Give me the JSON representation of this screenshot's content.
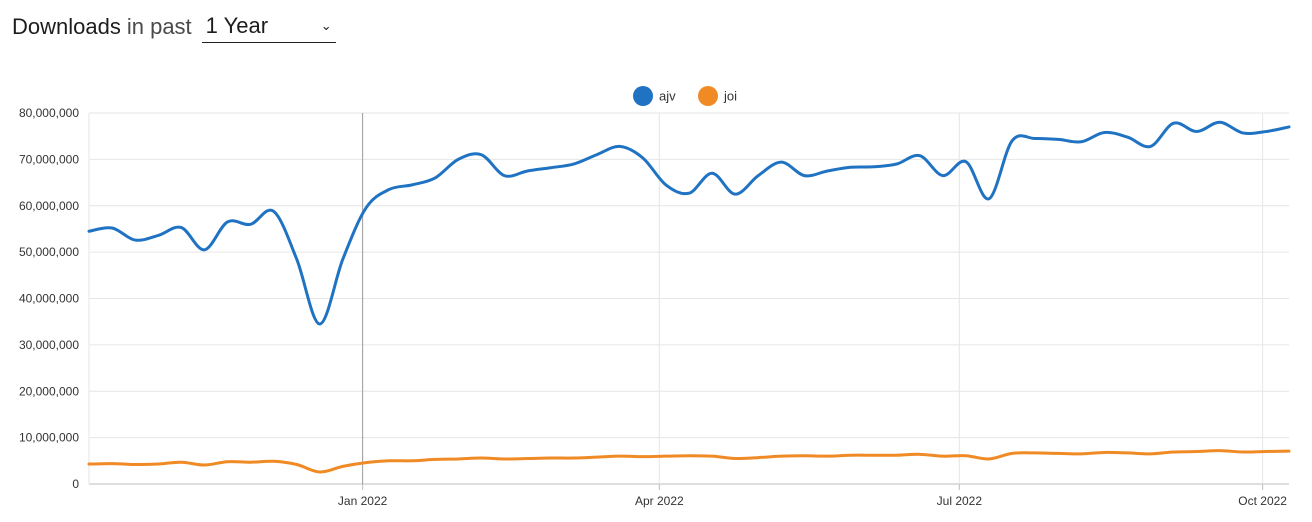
{
  "header": {
    "title_strong": "Downloads",
    "title_light": "in past",
    "period_selected": "1 Year",
    "chevron_icon": "chevron-down-icon"
  },
  "chart_data": {
    "type": "line",
    "title": "",
    "xlabel": "",
    "ylabel": "",
    "ylim": [
      0,
      80000000
    ],
    "y_ticks": [
      0,
      10000000,
      20000000,
      30000000,
      40000000,
      50000000,
      60000000,
      70000000,
      80000000
    ],
    "y_tick_labels": [
      "0",
      "10,000,000",
      "20,000,000",
      "30,000,000",
      "40,000,000",
      "50,000,000",
      "60,000,000",
      "70,000,000",
      "80,000,000"
    ],
    "x_range": [
      "2021-10-10",
      "2022-10-09"
    ],
    "x_ticks": [
      {
        "date": "2022-01-01",
        "label": "Jan 2022"
      },
      {
        "date": "2022-04-01",
        "label": "Apr 2022"
      },
      {
        "date": "2022-07-01",
        "label": "Jul 2022"
      },
      {
        "date": "2022-10-01",
        "label": "Oct 2022"
      }
    ],
    "hover_date": "2022-01-01",
    "grid": true,
    "legend_position": "top-center",
    "series": [
      {
        "name": "ajv",
        "color": "#1f73c2",
        "points": [
          [
            "2021-10-10",
            54500000
          ],
          [
            "2021-10-17",
            55200000
          ],
          [
            "2021-10-24",
            52600000
          ],
          [
            "2021-10-31",
            53600000
          ],
          [
            "2021-11-07",
            55300000
          ],
          [
            "2021-11-14",
            50500000
          ],
          [
            "2021-11-21",
            56500000
          ],
          [
            "2021-11-28",
            56000000
          ],
          [
            "2021-12-05",
            58800000
          ],
          [
            "2021-12-12",
            48500000
          ],
          [
            "2021-12-19",
            34500000
          ],
          [
            "2021-12-26",
            48500000
          ],
          [
            "2022-01-02",
            59500000
          ],
          [
            "2022-01-09",
            63500000
          ],
          [
            "2022-01-16",
            64500000
          ],
          [
            "2022-01-23",
            66000000
          ],
          [
            "2022-01-30",
            70000000
          ],
          [
            "2022-02-06",
            71000000
          ],
          [
            "2022-02-13",
            66500000
          ],
          [
            "2022-02-20",
            67500000
          ],
          [
            "2022-02-27",
            68200000
          ],
          [
            "2022-03-06",
            69000000
          ],
          [
            "2022-03-13",
            71000000
          ],
          [
            "2022-03-20",
            72800000
          ],
          [
            "2022-03-27",
            70300000
          ],
          [
            "2022-04-03",
            64500000
          ],
          [
            "2022-04-10",
            62700000
          ],
          [
            "2022-04-17",
            67000000
          ],
          [
            "2022-04-24",
            62500000
          ],
          [
            "2022-05-01",
            66500000
          ],
          [
            "2022-05-08",
            69400000
          ],
          [
            "2022-05-15",
            66500000
          ],
          [
            "2022-05-22",
            67500000
          ],
          [
            "2022-05-29",
            68300000
          ],
          [
            "2022-06-05",
            68400000
          ],
          [
            "2022-06-12",
            69000000
          ],
          [
            "2022-06-19",
            70800000
          ],
          [
            "2022-06-26",
            66500000
          ],
          [
            "2022-07-03",
            69500000
          ],
          [
            "2022-07-10",
            61500000
          ],
          [
            "2022-07-17",
            74000000
          ],
          [
            "2022-07-24",
            74500000
          ],
          [
            "2022-07-31",
            74300000
          ],
          [
            "2022-08-07",
            73800000
          ],
          [
            "2022-08-14",
            75800000
          ],
          [
            "2022-08-21",
            74800000
          ],
          [
            "2022-08-28",
            72800000
          ],
          [
            "2022-09-04",
            77800000
          ],
          [
            "2022-09-11",
            76000000
          ],
          [
            "2022-09-18",
            78000000
          ],
          [
            "2022-09-25",
            75700000
          ],
          [
            "2022-10-02",
            76000000
          ],
          [
            "2022-10-09",
            77000000
          ]
        ]
      },
      {
        "name": "joi",
        "color": "#f08a24",
        "points": [
          [
            "2021-10-10",
            4300000
          ],
          [
            "2021-10-17",
            4400000
          ],
          [
            "2021-10-24",
            4200000
          ],
          [
            "2021-10-31",
            4300000
          ],
          [
            "2021-11-07",
            4700000
          ],
          [
            "2021-11-14",
            4100000
          ],
          [
            "2021-11-21",
            4800000
          ],
          [
            "2021-11-28",
            4700000
          ],
          [
            "2021-12-05",
            4900000
          ],
          [
            "2021-12-12",
            4200000
          ],
          [
            "2021-12-19",
            2600000
          ],
          [
            "2021-12-26",
            3800000
          ],
          [
            "2022-01-02",
            4600000
          ],
          [
            "2022-01-09",
            5000000
          ],
          [
            "2022-01-16",
            5000000
          ],
          [
            "2022-01-23",
            5300000
          ],
          [
            "2022-01-30",
            5400000
          ],
          [
            "2022-02-06",
            5600000
          ],
          [
            "2022-02-13",
            5400000
          ],
          [
            "2022-02-20",
            5500000
          ],
          [
            "2022-02-27",
            5600000
          ],
          [
            "2022-03-06",
            5600000
          ],
          [
            "2022-03-13",
            5800000
          ],
          [
            "2022-03-20",
            6000000
          ],
          [
            "2022-03-27",
            5900000
          ],
          [
            "2022-04-03",
            6000000
          ],
          [
            "2022-04-10",
            6100000
          ],
          [
            "2022-04-17",
            6000000
          ],
          [
            "2022-04-24",
            5500000
          ],
          [
            "2022-05-01",
            5700000
          ],
          [
            "2022-05-08",
            6000000
          ],
          [
            "2022-05-15",
            6100000
          ],
          [
            "2022-05-22",
            6000000
          ],
          [
            "2022-05-29",
            6200000
          ],
          [
            "2022-06-05",
            6200000
          ],
          [
            "2022-06-12",
            6200000
          ],
          [
            "2022-06-19",
            6400000
          ],
          [
            "2022-06-26",
            6000000
          ],
          [
            "2022-07-03",
            6100000
          ],
          [
            "2022-07-10",
            5400000
          ],
          [
            "2022-07-17",
            6600000
          ],
          [
            "2022-07-24",
            6700000
          ],
          [
            "2022-07-31",
            6600000
          ],
          [
            "2022-08-07",
            6500000
          ],
          [
            "2022-08-14",
            6800000
          ],
          [
            "2022-08-21",
            6700000
          ],
          [
            "2022-08-28",
            6500000
          ],
          [
            "2022-09-04",
            6900000
          ],
          [
            "2022-09-11",
            7000000
          ],
          [
            "2022-09-18",
            7200000
          ],
          [
            "2022-09-25",
            6900000
          ],
          [
            "2022-10-02",
            7000000
          ],
          [
            "2022-10-09",
            7100000
          ]
        ]
      }
    ]
  }
}
